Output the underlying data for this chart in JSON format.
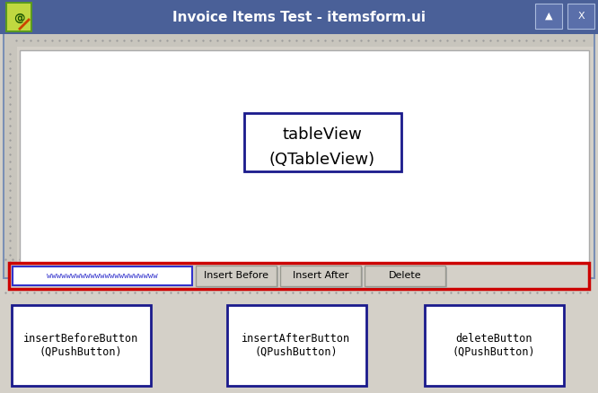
{
  "bg_color": "#d4d0c8",
  "titlebar_color": "#4a6098",
  "titlebar_text": "Invoice Items Test - itemsform.ui",
  "titlebar_text_color": "#ffffff",
  "window_outer_border": "#7a8fb5",
  "window_inner_bg": "#d4d0c8",
  "ruler_bg": "#c8c5bd",
  "ruler_dot_color": "#999999",
  "table_area_bg": "#ffffff",
  "table_area_border": "#aaaaaa",
  "table_label_line1": "tableView",
  "table_label_line2": "(QTableView)",
  "table_label_border": "#1a1a8c",
  "bottom_strip_border": "#cc0000",
  "bottom_strip_bg": "#d4d0c8",
  "textbox_border": "#3333cc",
  "textbox_fill": "#ffffff",
  "textbox_text_color": "#3333cc",
  "btn_bg": "#d0ccc4",
  "btn_border": "#999990",
  "btn1_text": "Insert Before",
  "btn2_text": "Insert After",
  "btn3_text": "Delete",
  "label_border_color": "#1a1a8c",
  "label1_text": "insertBeforeButton\n(QPushButton)",
  "label2_text": "insertAfterButton\n(QPushButton)",
  "label3_text": "deleteButton\n(QPushButton)",
  "fig_width": 6.66,
  "fig_height": 4.38,
  "dpi": 100
}
